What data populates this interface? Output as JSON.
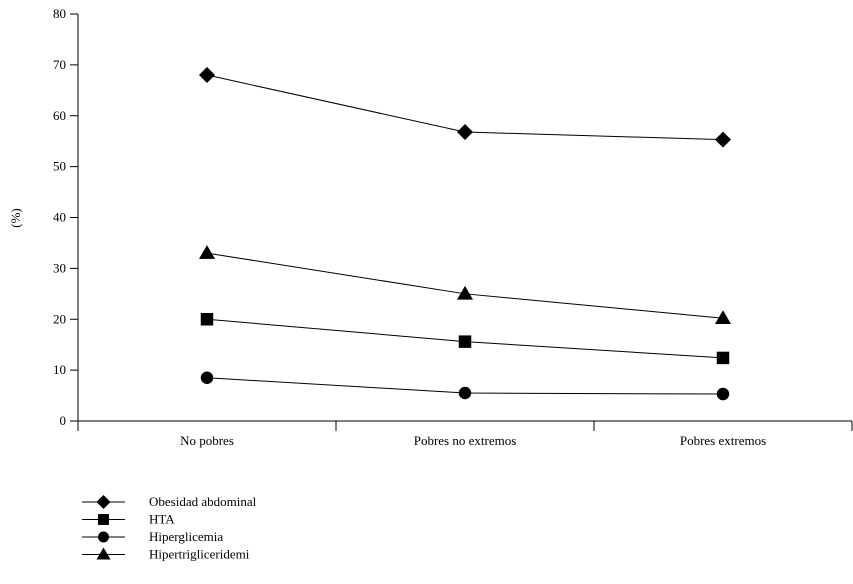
{
  "chart_data": {
    "type": "line",
    "title": "",
    "xlabel": "",
    "ylabel": "(%)",
    "ylim": [
      0,
      80
    ],
    "yticks": [
      "0",
      "10",
      "20",
      "30",
      "40",
      "50",
      "60",
      "70",
      "80"
    ],
    "categories": [
      "No pobres",
      "Pobres no extremos",
      "Pobres extremos"
    ],
    "grid": false,
    "legend_position": "bottom-left",
    "series": [
      {
        "name": "Obesidad abdominal",
        "marker": "diamond",
        "values": [
          68,
          56.8,
          55.3
        ]
      },
      {
        "name": "HTA",
        "marker": "square",
        "values": [
          20,
          15.6,
          12.4
        ]
      },
      {
        "name": "Hiperglicemia",
        "marker": "circle",
        "values": [
          8.5,
          5.5,
          5.3
        ]
      },
      {
        "name": "Hipertrigliceridemi",
        "marker": "triangle",
        "values": [
          33,
          25,
          20.2
        ]
      }
    ]
  }
}
